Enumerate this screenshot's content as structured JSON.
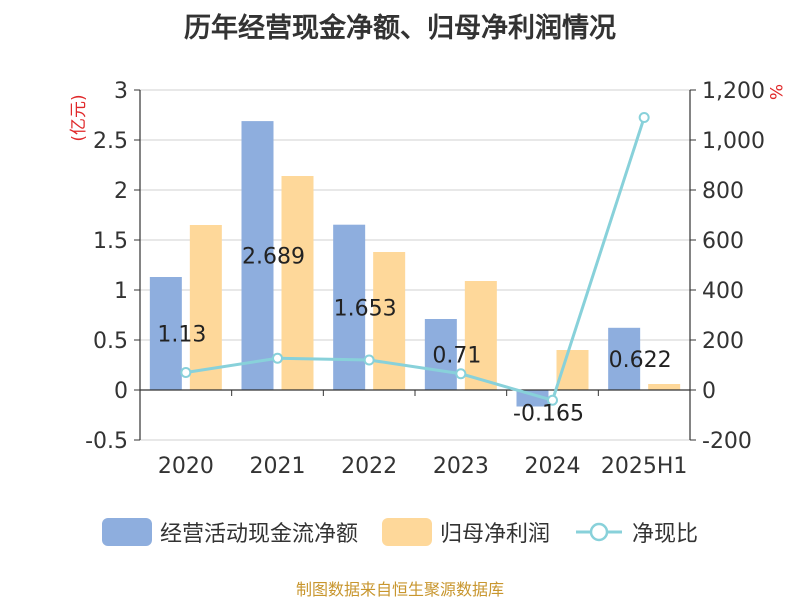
{
  "title": "历年经营现金净额、归母净利润情况",
  "source": "制图数据来自恒生聚源数据库",
  "colors": {
    "cash": "#8eaede",
    "profit": "#fed89a",
    "ratio": "#88d1da",
    "unit": "#e0282a"
  },
  "chart_data": {
    "type": "bar",
    "title": "历年经营现金净额、归母净利润情况",
    "categories": [
      "2020",
      "2021",
      "2022",
      "2023",
      "2024",
      "2025H1"
    ],
    "y_left": {
      "label": "(亿元)",
      "range": [
        -0.5,
        3
      ],
      "ticks": [
        "-0.5",
        "0",
        "0.5",
        "1",
        "1.5",
        "2",
        "2.5",
        "3"
      ]
    },
    "y_right": {
      "label": "%",
      "range": [
        -200,
        1200
      ],
      "ticks": [
        "-200",
        "0",
        "200",
        "400",
        "600",
        "800",
        "1,000",
        "1,200"
      ]
    },
    "grid": true,
    "legend_position": "bottom",
    "series": [
      {
        "name": "经营活动现金流净额",
        "type": "bar",
        "axis": "left",
        "values": [
          1.13,
          2.689,
          1.653,
          0.71,
          -0.165,
          0.622
        ],
        "labels": [
          "1.13",
          "2.689",
          "1.653",
          "0.71",
          "-0.165",
          "0.622"
        ]
      },
      {
        "name": "归母净利润",
        "type": "bar",
        "axis": "left",
        "values": [
          1.65,
          2.14,
          1.38,
          1.09,
          0.4,
          0.06
        ]
      },
      {
        "name": "净现比",
        "type": "line",
        "axis": "right",
        "values": [
          70,
          127,
          120,
          65,
          -41,
          1090
        ]
      }
    ]
  }
}
